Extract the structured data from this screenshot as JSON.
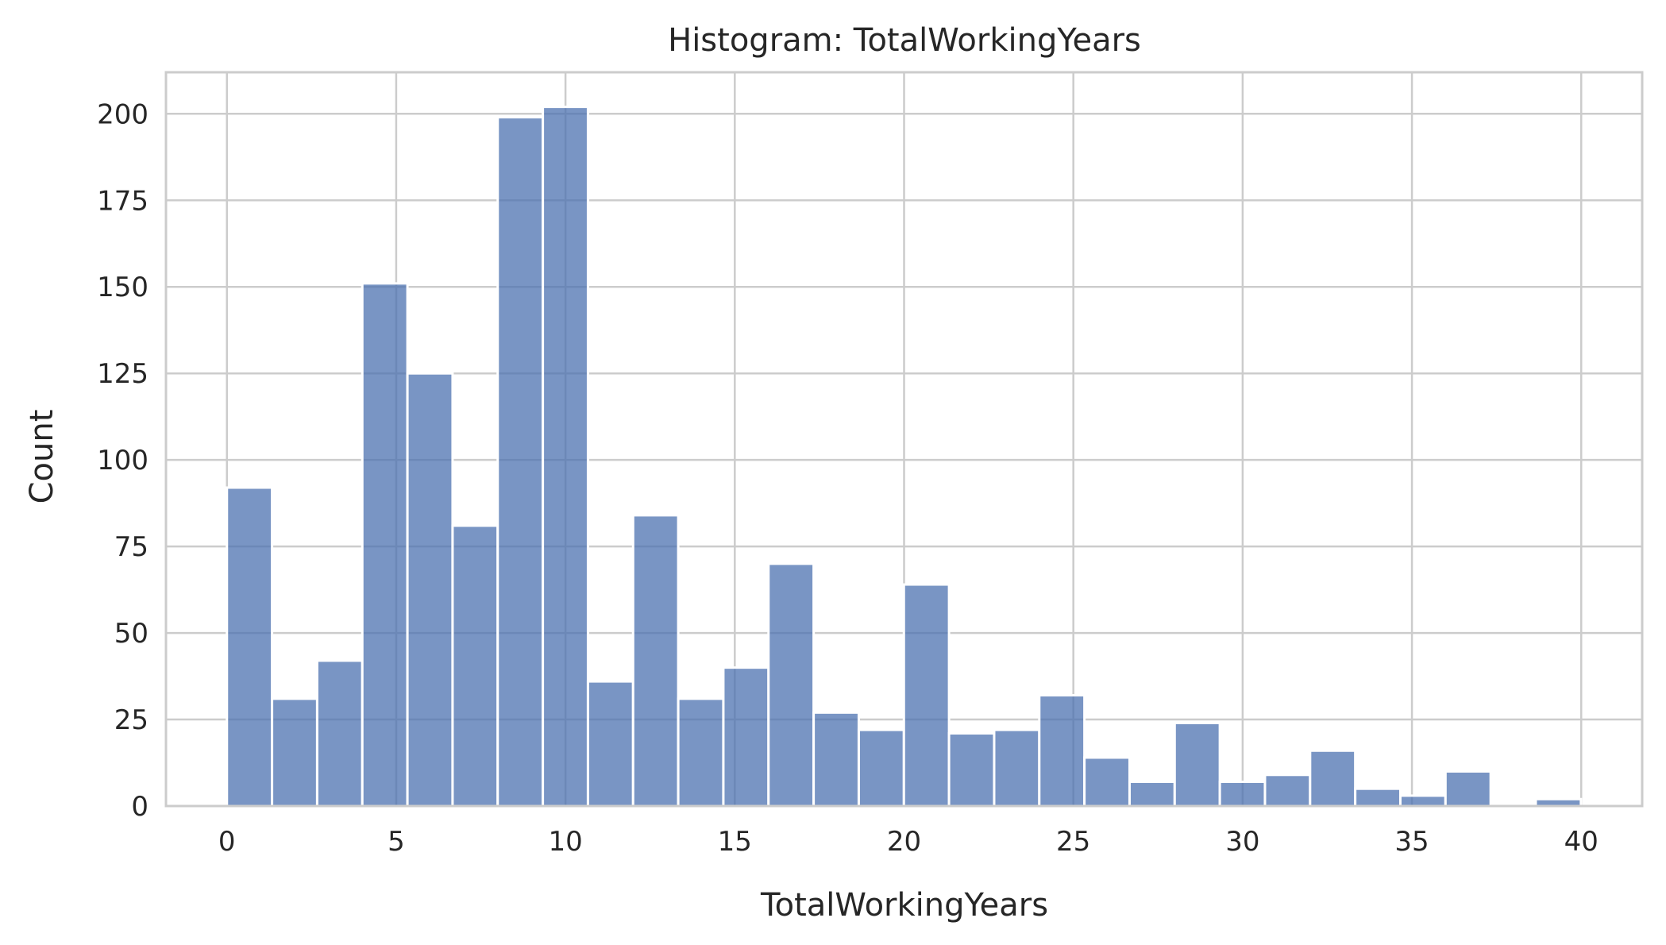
{
  "chart_data": {
    "type": "bar",
    "title": "Histogram: TotalWorkingYears",
    "xlabel": "TotalWorkingYears",
    "ylabel": "Count",
    "xlim": [
      -1.8,
      41.8
    ],
    "ylim": [
      0,
      212
    ],
    "bin_width": 1.333,
    "bin_start": 0,
    "xticks": [
      0,
      5,
      10,
      15,
      20,
      25,
      30,
      35,
      40
    ],
    "yticks": [
      0,
      25,
      50,
      75,
      100,
      125,
      150,
      175,
      200
    ],
    "values": [
      92,
      31,
      42,
      151,
      125,
      81,
      199,
      202,
      36,
      84,
      31,
      40,
      70,
      27,
      22,
      64,
      21,
      22,
      32,
      14,
      7,
      24,
      7,
      9,
      16,
      5,
      3,
      10,
      0,
      2
    ],
    "bar_color": "#4c72b0",
    "grid": true
  }
}
